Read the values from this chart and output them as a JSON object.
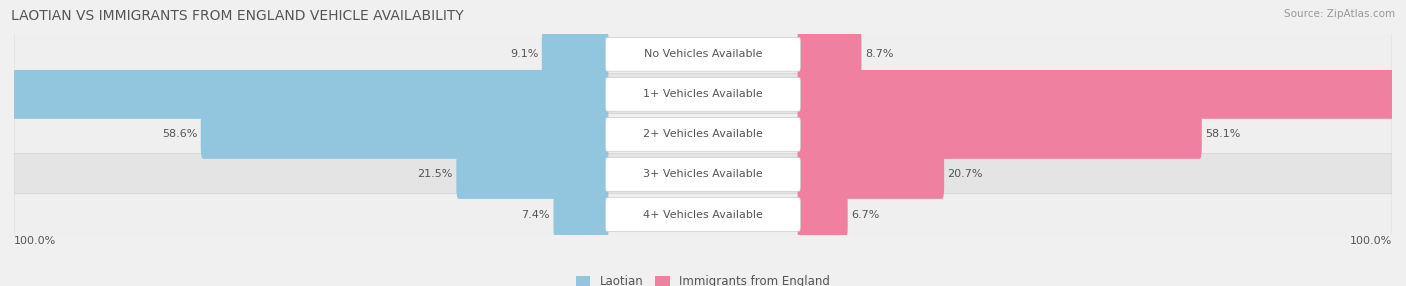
{
  "title": "LAOTIAN VS IMMIGRANTS FROM ENGLAND VEHICLE AVAILABILITY",
  "source": "Source: ZipAtlas.com",
  "categories": [
    "No Vehicles Available",
    "1+ Vehicles Available",
    "2+ Vehicles Available",
    "3+ Vehicles Available",
    "4+ Vehicles Available"
  ],
  "laotian_values": [
    9.1,
    91.0,
    58.6,
    21.5,
    7.4
  ],
  "england_values": [
    8.7,
    91.4,
    58.1,
    20.7,
    6.7
  ],
  "laotian_color": "#92C5DE",
  "england_color": "#F080A0",
  "laotian_label": "Laotian",
  "england_label": "Immigrants from England",
  "max_value": 100.0,
  "axis_label_left": "100.0%",
  "axis_label_right": "100.0%",
  "title_fontsize": 10,
  "label_fontsize": 8,
  "source_fontsize": 7.5,
  "row_bg_even": "#EFEFEF",
  "row_bg_odd": "#E4E4E4",
  "fig_bg": "#F0F0F0"
}
